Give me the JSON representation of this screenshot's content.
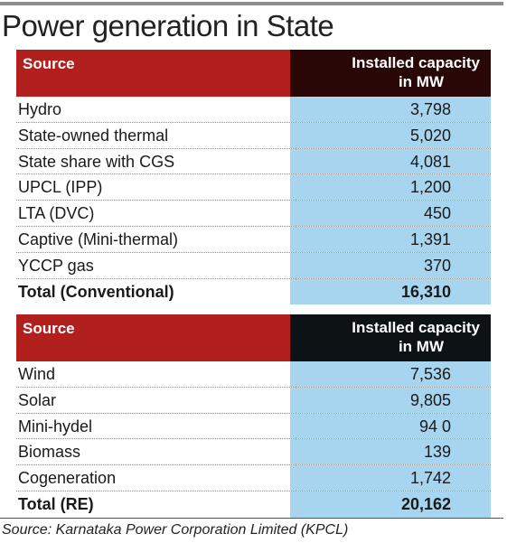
{
  "title": "Power generation in State",
  "source_note": "Source: Karnataka Power Corporation Limited (KPCL)",
  "colors": {
    "header_source": "#b2201e",
    "header_capacity": "#2a0707",
    "value_column": "#a7d5ef"
  },
  "chart_data": [
    {
      "type": "table",
      "columns": [
        "Source",
        "Installed capacity in MW"
      ],
      "header_capacity_line1": "Installed capacity",
      "header_capacity_line2": "in MW",
      "rows": [
        {
          "source": "Hydro",
          "value": "3,798"
        },
        {
          "source": "State-owned thermal",
          "value": "5,020"
        },
        {
          "source": "State share with CGS",
          "value": "4,081"
        },
        {
          "source": "UPCL (IPP)",
          "value": "1,200"
        },
        {
          "source": "LTA (DVC)",
          "value": "450"
        },
        {
          "source": "Captive (Mini-thermal)",
          "value": "1,391"
        },
        {
          "source": "YCCP gas",
          "value": "370"
        }
      ],
      "total": {
        "source": "Total (Conventional)",
        "value": "16,310"
      }
    },
    {
      "type": "table",
      "columns": [
        "Source",
        "Installed capacity in MW"
      ],
      "header_capacity_line1": "Installed capacity",
      "header_capacity_line2": "in MW",
      "rows": [
        {
          "source": "Wind",
          "value": "7,536"
        },
        {
          "source": "Solar",
          "value": "9,805"
        },
        {
          "source": "Mini-hydel",
          "value": "94 0"
        },
        {
          "source": "Biomass",
          "value": "139"
        },
        {
          "source": "Cogeneration",
          "value": "1,742"
        }
      ],
      "total": {
        "source": "Total  (RE)",
        "value": "20,162"
      }
    }
  ]
}
